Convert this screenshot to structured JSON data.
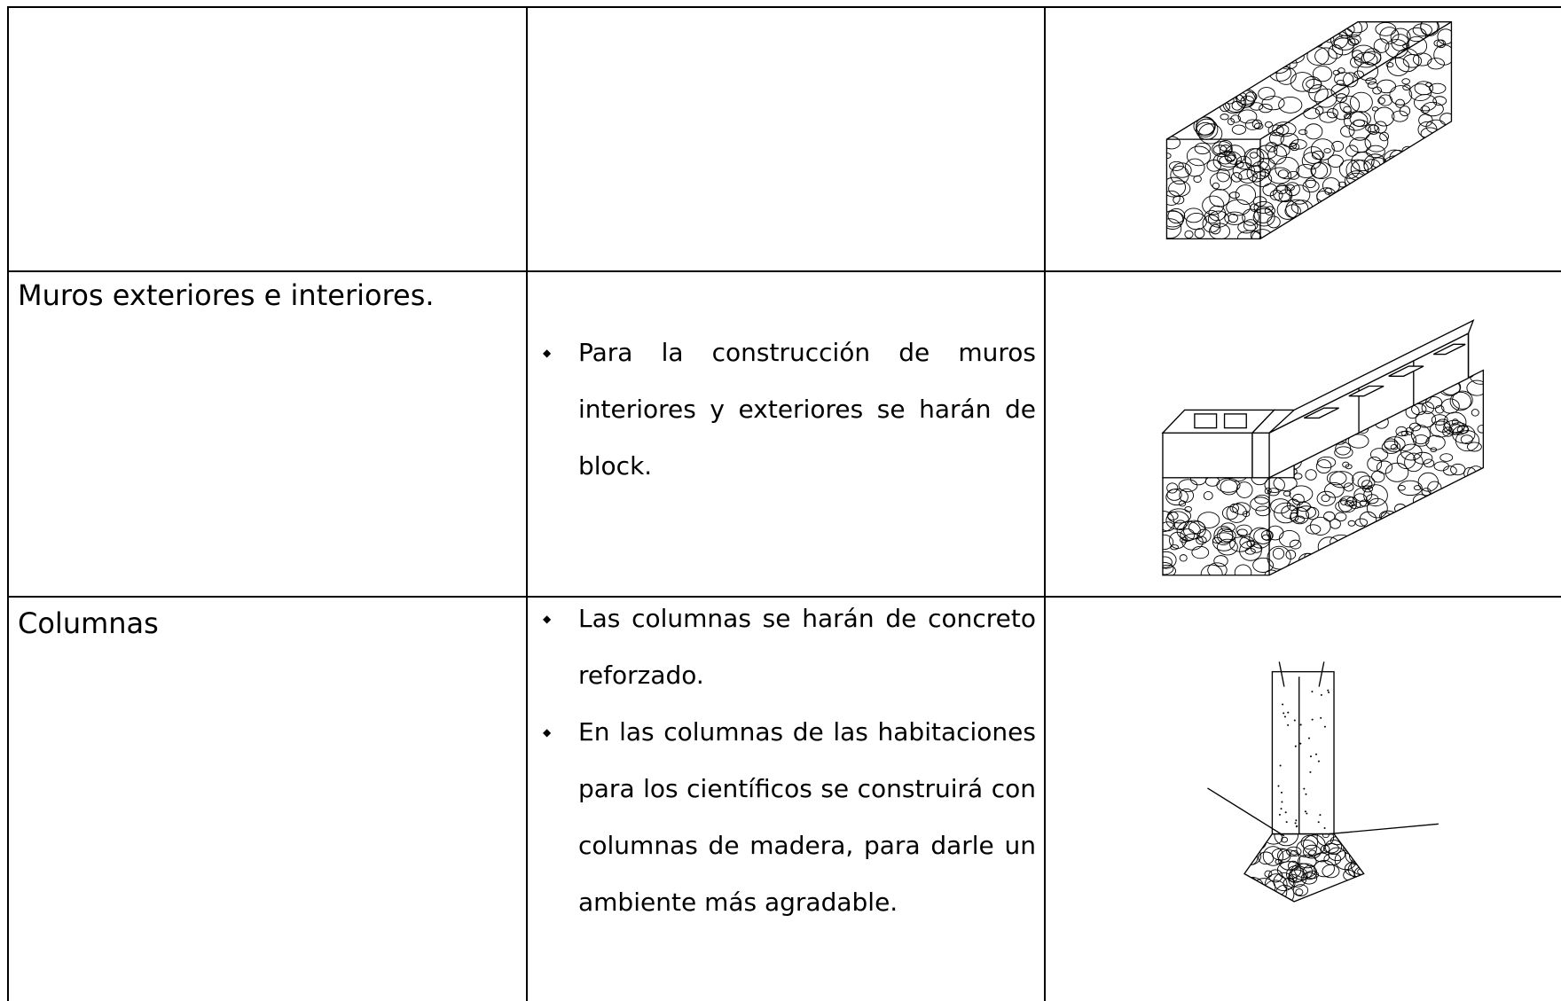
{
  "table": {
    "rows": [
      {
        "label": "Muros exteriores e interiores.",
        "items": [
          "Para  la construcción de muros interiores y exteriores se harán de block."
        ]
      },
      {
        "label": "Columnas",
        "items": [
          "Las columnas se harán de concreto reforzado.",
          "En las columnas de las habitaciones para los científicos se construirá con columnas de madera, para darle un ambiente más agradable."
        ]
      }
    ]
  }
}
